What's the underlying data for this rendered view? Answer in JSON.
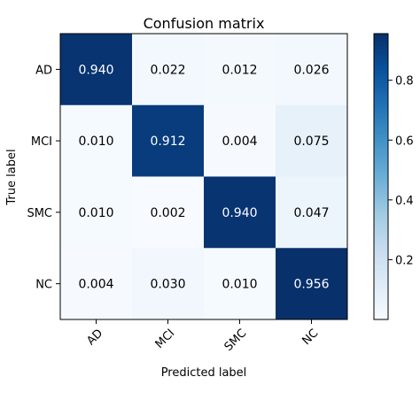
{
  "chart_data": {
    "type": "heatmap",
    "title": "Confusion matrix",
    "xlabel": "Predicted label",
    "ylabel": "True label",
    "x_categories": [
      "AD",
      "MCI",
      "SMC",
      "NC"
    ],
    "y_categories": [
      "AD",
      "MCI",
      "SMC",
      "NC"
    ],
    "values": [
      [
        0.94,
        0.022,
        0.012,
        0.026
      ],
      [
        0.01,
        0.912,
        0.004,
        0.075
      ],
      [
        0.01,
        0.002,
        0.94,
        0.047
      ],
      [
        0.004,
        0.03,
        0.01,
        0.956
      ]
    ],
    "value_labels": [
      [
        "0.940",
        "0.022",
        "0.012",
        "0.026"
      ],
      [
        "0.010",
        "0.912",
        "0.004",
        "0.075"
      ],
      [
        "0.010",
        "0.002",
        "0.940",
        "0.047"
      ],
      [
        "0.004",
        "0.030",
        "0.010",
        "0.956"
      ]
    ],
    "colormap": "Blues",
    "colorbar": {
      "range": [
        0.0,
        0.956
      ],
      "ticks": [
        0.2,
        0.4,
        0.6,
        0.8
      ],
      "tick_labels": [
        "0.2",
        "0.4",
        "0.6",
        "0.8"
      ]
    },
    "colors": {
      "low": "#f7fbff",
      "high": "#08306b"
    }
  }
}
